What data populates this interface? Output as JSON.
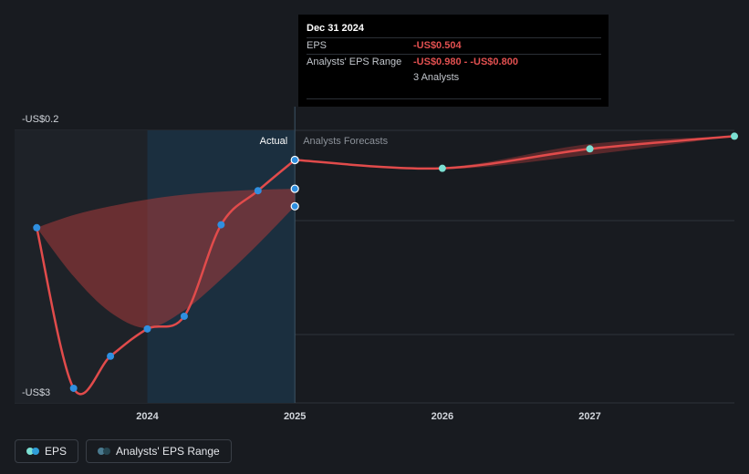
{
  "tooltip": {
    "date": "Dec 31 2024",
    "eps_label": "EPS",
    "eps_value": "-US$0.504",
    "range_label": "Analysts' EPS Range",
    "range_value": "-US$0.980 - -US$0.800",
    "analysts": "3 Analysts"
  },
  "section_labels": {
    "actual": "Actual",
    "forecast": "Analysts Forecasts"
  },
  "legend": {
    "eps": {
      "label": "EPS",
      "colors": [
        "#7ce0d3",
        "#2f9ed8"
      ]
    },
    "range": {
      "label": "Analysts' EPS Range",
      "colors": [
        "#4a7a8f",
        "#264651"
      ]
    }
  },
  "colors": {
    "background": "#181b20",
    "line": "#e14b4b",
    "actual_point": "#2f8fe0",
    "forecast_point": "#7ce0d3",
    "range_fill": "#a83a3a",
    "highlight_band": "#1b3447"
  },
  "chart_data": {
    "type": "line",
    "y_axis_labels": [
      "-US$0.2",
      "-US$3"
    ],
    "ylim": [
      -3,
      -0.2
    ],
    "x_ticks": [
      {
        "label": "2024",
        "x": 2024.0
      },
      {
        "label": "2025",
        "x": 2025.0
      },
      {
        "label": "2026",
        "x": 2026.0
      },
      {
        "label": "2027",
        "x": 2027.0
      }
    ],
    "xlim": [
      2023.1,
      2027.98
    ],
    "grid": true,
    "legend_position": "bottom-left",
    "eps_actual": [
      {
        "x": 2023.25,
        "y": -1.2
      },
      {
        "x": 2023.5,
        "y": -2.85
      },
      {
        "x": 2023.75,
        "y": -2.52
      },
      {
        "x": 2024.0,
        "y": -2.24
      },
      {
        "x": 2024.25,
        "y": -2.11
      },
      {
        "x": 2024.5,
        "y": -1.17
      },
      {
        "x": 2024.75,
        "y": -0.82
      },
      {
        "x": 2025.0,
        "y": -0.504
      }
    ],
    "eps_forecast": [
      {
        "x": 2025.0,
        "y": -0.504
      },
      {
        "x": 2026.0,
        "y": -0.59
      },
      {
        "x": 2027.0,
        "y": -0.39
      },
      {
        "x": 2027.98,
        "y": -0.26
      }
    ],
    "range_low_at_highlight": -0.98,
    "range_high_at_highlight": -0.8,
    "historical_range": {
      "x": [
        2023.25,
        2023.5,
        2023.75,
        2024.0,
        2024.25,
        2024.5,
        2024.75,
        2025.0
      ],
      "high": [
        -1.2,
        -1.07,
        -0.98,
        -0.91,
        -0.86,
        -0.83,
        -0.81,
        -0.8
      ],
      "low": [
        -1.2,
        -1.7,
        -2.07,
        -2.23,
        -2.05,
        -1.73,
        -1.37,
        -0.98
      ]
    },
    "forecast_range": {
      "x": [
        2025.0,
        2026.0,
        2027.0,
        2027.98
      ],
      "high": [
        -0.504,
        -0.58,
        -0.34,
        -0.26
      ],
      "low": [
        -0.504,
        -0.6,
        -0.45,
        -0.26
      ]
    },
    "highlight_x": 2025.0
  }
}
